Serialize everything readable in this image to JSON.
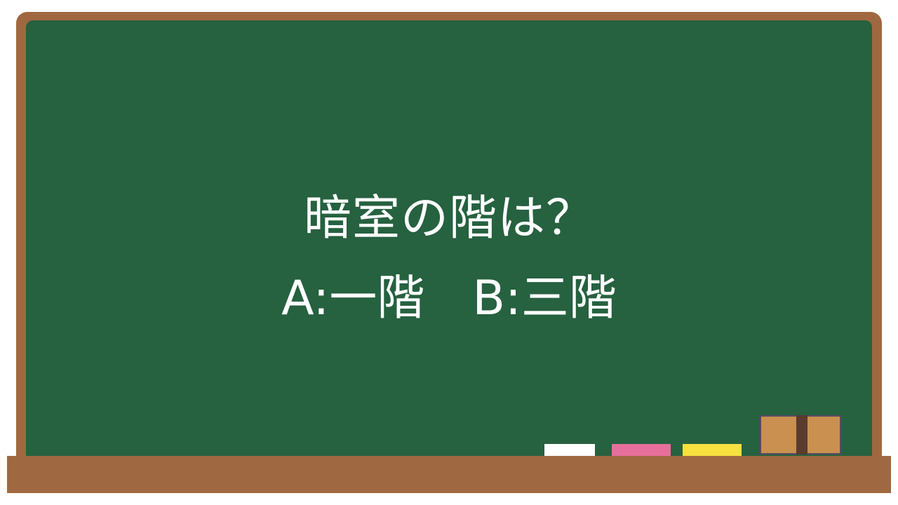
{
  "board": {
    "question": "暗室の階は？",
    "answers": "A:一階　B:三階"
  },
  "colors": {
    "frame": "#a06840",
    "board": "#266140",
    "text": "#ffffff",
    "chalk_white": "#ffffff",
    "chalk_pink": "#e66f9b",
    "chalk_yellow": "#f7e13f",
    "eraser": "#c99050",
    "eraser_band": "#5a3c2f"
  }
}
